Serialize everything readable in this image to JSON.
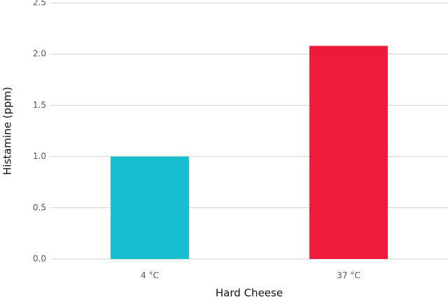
{
  "chart_data": {
    "type": "bar",
    "categories": [
      "4 °C",
      "37 °C"
    ],
    "values": [
      1.0,
      2.08
    ],
    "colors": [
      "#17becf",
      "#ee1c3a"
    ],
    "xlabel": "Hard Cheese",
    "ylabel": "Histamine (ppm)",
    "ylim": [
      0,
      2.5
    ],
    "yticks": [
      {
        "value": 0,
        "label": "0.0"
      },
      {
        "value": 0.5,
        "label": "0.5"
      },
      {
        "value": 1,
        "label": "1.0"
      },
      {
        "value": 1.5,
        "label": "1.5"
      },
      {
        "value": 2,
        "label": "2.0"
      },
      {
        "value": 2.5,
        "label": "2.5"
      }
    ],
    "grid": true
  }
}
